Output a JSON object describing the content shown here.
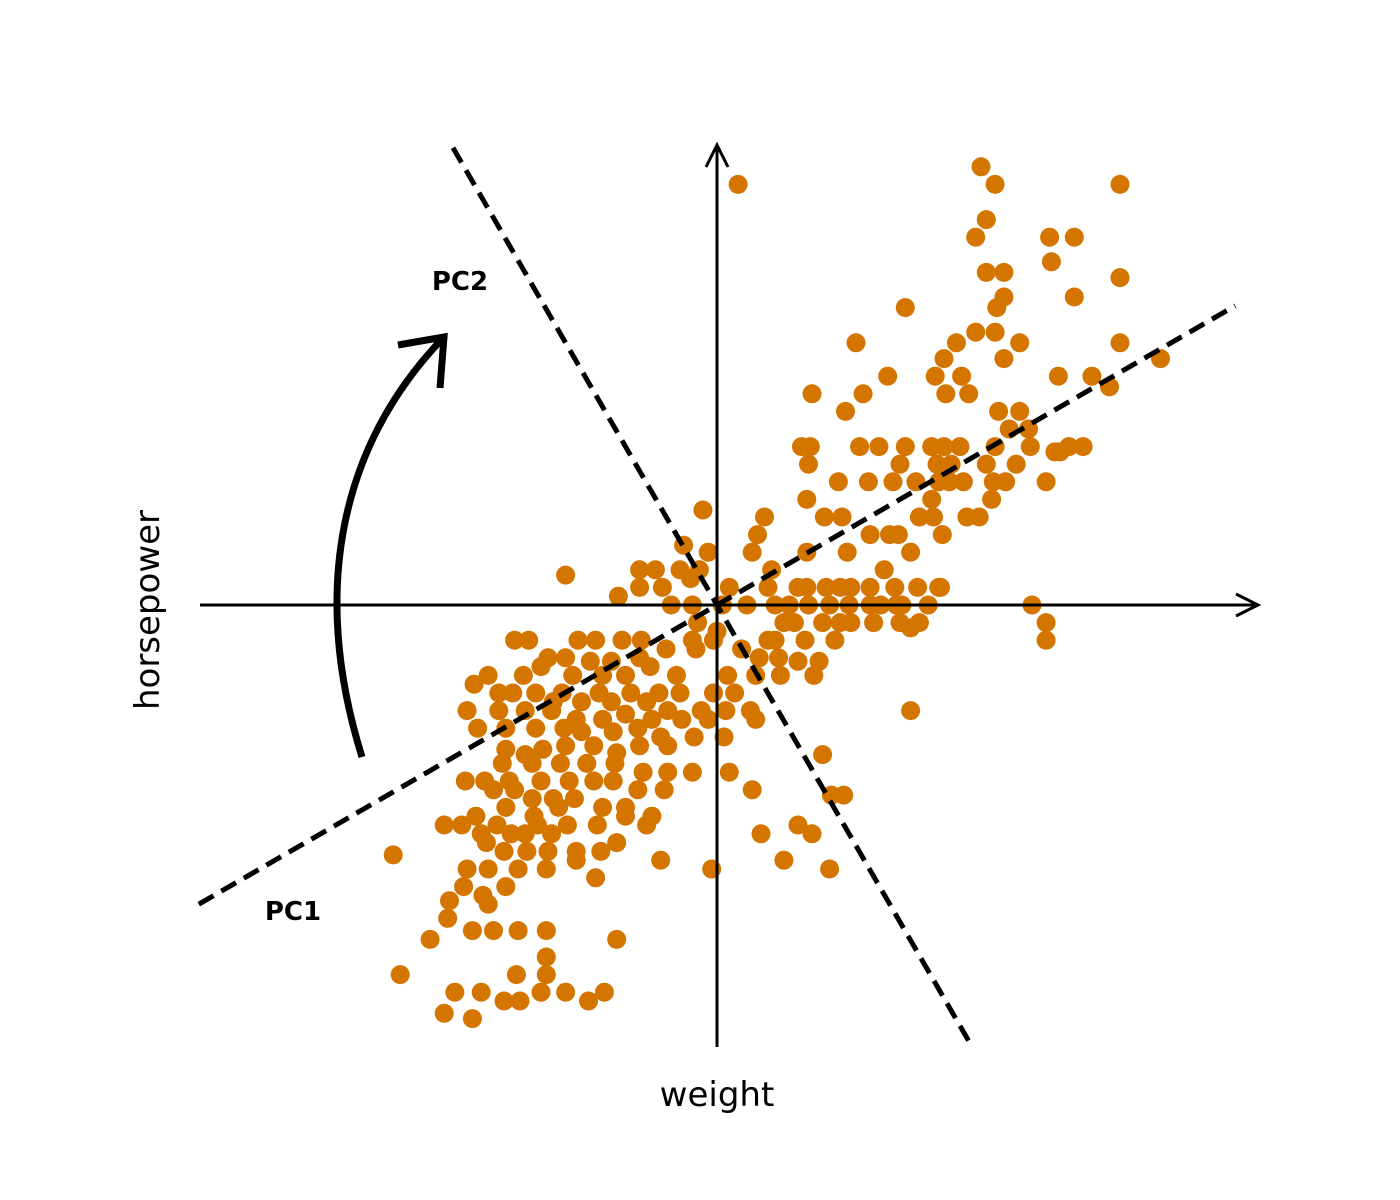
{
  "chart_data": {
    "type": "scatter",
    "xlabel": "weight",
    "ylabel": "horsepower",
    "xlim": [
      -2.5,
      2.5
    ],
    "ylim": [
      -2.5,
      2.5
    ],
    "point_color": "#D47500",
    "line_color": "#000000",
    "grid": false,
    "legend": "none",
    "annotations": [
      {
        "text": "PC1",
        "direction": [
          0.866,
          0.5
        ]
      },
      {
        "text": "PC2",
        "direction": [
          -0.5,
          0.866
        ]
      }
    ],
    "rotation_arrow": "counter-clockwise from PC1 to PC2",
    "points": [
      [
        0.12,
        2.39
      ],
      [
        1.5,
        2.49
      ],
      [
        1.58,
        2.39
      ],
      [
        2.29,
        2.39
      ],
      [
        1.53,
        2.19
      ],
      [
        1.47,
        2.09
      ],
      [
        1.89,
        2.09
      ],
      [
        2.03,
        2.09
      ],
      [
        1.9,
        1.95
      ],
      [
        1.63,
        1.89
      ],
      [
        1.53,
        1.89
      ],
      [
        1.59,
        1.69
      ],
      [
        2.29,
        1.86
      ],
      [
        2.03,
        1.75
      ],
      [
        1.63,
        1.75
      ],
      [
        1.47,
        1.55
      ],
      [
        1.07,
        1.69
      ],
      [
        0.79,
        1.49
      ],
      [
        1.36,
        1.49
      ],
      [
        1.58,
        1.55
      ],
      [
        1.72,
        1.49
      ],
      [
        1.63,
        1.4
      ],
      [
        2.29,
        1.49
      ],
      [
        2.52,
        1.4
      ],
      [
        1.29,
        1.4
      ],
      [
        0.97,
        1.3
      ],
      [
        1.39,
        1.3
      ],
      [
        1.94,
        1.3
      ],
      [
        2.13,
        1.3
      ],
      [
        2.23,
        1.24
      ],
      [
        0.54,
        1.2
      ],
      [
        0.83,
        1.2
      ],
      [
        1.3,
        1.2
      ],
      [
        1.43,
        1.2
      ],
      [
        1.24,
        1.3
      ],
      [
        0.73,
        1.1
      ],
      [
        1.6,
        1.1
      ],
      [
        1.72,
        1.1
      ],
      [
        1.66,
        1.0
      ],
      [
        1.77,
        1.0
      ],
      [
        0.48,
        0.9
      ],
      [
        0.53,
        0.9
      ],
      [
        0.81,
        0.9
      ],
      [
        0.92,
        0.9
      ],
      [
        1.07,
        0.9
      ],
      [
        1.22,
        0.9
      ],
      [
        1.29,
        0.9
      ],
      [
        1.38,
        0.9
      ],
      [
        1.58,
        0.9
      ],
      [
        1.78,
        0.9
      ],
      [
        1.95,
        0.87
      ],
      [
        2.0,
        0.9
      ],
      [
        2.08,
        0.9
      ],
      [
        0.52,
        0.8
      ],
      [
        1.04,
        0.8
      ],
      [
        1.25,
        0.8
      ],
      [
        1.33,
        0.8
      ],
      [
        1.53,
        0.8
      ],
      [
        1.7,
        0.8
      ],
      [
        1.92,
        0.87
      ],
      [
        1.87,
        0.7
      ],
      [
        1.26,
        0.7
      ],
      [
        1.32,
        0.7
      ],
      [
        1.4,
        0.7
      ],
      [
        1.57,
        0.7
      ],
      [
        1.64,
        0.7
      ],
      [
        0.69,
        0.7
      ],
      [
        0.86,
        0.7
      ],
      [
        1.0,
        0.7
      ],
      [
        1.13,
        0.7
      ],
      [
        1.22,
        0.6
      ],
      [
        1.56,
        0.6
      ],
      [
        0.51,
        0.6
      ],
      [
        0.61,
        0.5
      ],
      [
        0.27,
        0.5
      ],
      [
        1.15,
        0.5
      ],
      [
        0.98,
        0.4
      ],
      [
        0.71,
        0.5
      ],
      [
        1.23,
        0.5
      ],
      [
        1.42,
        0.5
      ],
      [
        0.87,
        0.4
      ],
      [
        1.03,
        0.4
      ],
      [
        1.28,
        0.4
      ],
      [
        1.49,
        0.5
      ],
      [
        0.51,
        0.3
      ],
      [
        1.1,
        0.3
      ],
      [
        0.23,
        0.4
      ],
      [
        0.2,
        0.3
      ],
      [
        0.74,
        0.3
      ],
      [
        -0.08,
        0.54
      ],
      [
        -0.19,
        0.34
      ],
      [
        -0.05,
        0.3
      ],
      [
        0.31,
        0.2
      ],
      [
        0.95,
        0.2
      ],
      [
        1.27,
        0.1
      ],
      [
        -0.86,
        0.17
      ],
      [
        -0.44,
        0.2
      ],
      [
        -0.35,
        0.2
      ],
      [
        -0.21,
        0.2
      ],
      [
        -0.1,
        0.2
      ],
      [
        -0.56,
        0.05
      ],
      [
        -0.44,
        0.1
      ],
      [
        -0.31,
        0.1
      ],
      [
        -0.15,
        0.15
      ],
      [
        0.07,
        0.1
      ],
      [
        0.29,
        0.1
      ],
      [
        0.46,
        0.1
      ],
      [
        0.51,
        0.1
      ],
      [
        0.62,
        0.1
      ],
      [
        0.7,
        0.1
      ],
      [
        0.76,
        0.1
      ],
      [
        0.87,
        0.1
      ],
      [
        1.01,
        0.1
      ],
      [
        1.14,
        0.1
      ],
      [
        1.26,
        0.1
      ],
      [
        0.87,
        0.0
      ],
      [
        1.02,
        0.0
      ],
      [
        1.2,
        0.0
      ],
      [
        1.05,
        0.0
      ],
      [
        0.64,
        0.0
      ],
      [
        0.75,
        0.0
      ],
      [
        0.93,
        0.0
      ],
      [
        1.79,
        0.0
      ],
      [
        -0.26,
        0.0
      ],
      [
        -0.14,
        0.0
      ],
      [
        0.03,
        0.0
      ],
      [
        0.17,
        0.0
      ],
      [
        0.33,
        0.0
      ],
      [
        0.41,
        0.0
      ],
      [
        0.52,
        0.0
      ],
      [
        0.7,
        -0.1
      ],
      [
        0.89,
        -0.1
      ],
      [
        1.04,
        -0.1
      ],
      [
        1.15,
        -0.1
      ],
      [
        0.6,
        -0.1
      ],
      [
        0.76,
        -0.1
      ],
      [
        0.38,
        -0.1
      ],
      [
        0.44,
        -0.1
      ],
      [
        -0.11,
        -0.1
      ],
      [
        0.0,
        -0.15
      ],
      [
        1.87,
        -0.1
      ],
      [
        1.1,
        -0.13
      ],
      [
        1.87,
        -0.2
      ],
      [
        0.33,
        -0.2
      ],
      [
        0.5,
        -0.2
      ],
      [
        -0.02,
        -0.2
      ],
      [
        -0.14,
        -0.2
      ],
      [
        0.29,
        -0.2
      ],
      [
        0.67,
        -0.2
      ],
      [
        -1.15,
        -0.2
      ],
      [
        -1.07,
        -0.2
      ],
      [
        -0.79,
        -0.2
      ],
      [
        -0.69,
        -0.2
      ],
      [
        -0.54,
        -0.2
      ],
      [
        -0.43,
        -0.2
      ],
      [
        -0.29,
        -0.25
      ],
      [
        -0.12,
        -0.25
      ],
      [
        0.14,
        -0.25
      ],
      [
        0.24,
        -0.3
      ],
      [
        0.35,
        -0.3
      ],
      [
        0.46,
        -0.32
      ],
      [
        0.58,
        -0.32
      ],
      [
        -0.96,
        -0.3
      ],
      [
        -0.86,
        -0.3
      ],
      [
        -0.72,
        -0.32
      ],
      [
        -0.6,
        -0.32
      ],
      [
        -0.44,
        -0.3
      ],
      [
        -1.0,
        -0.35
      ],
      [
        -1.1,
        -0.4
      ],
      [
        -0.82,
        -0.4
      ],
      [
        -0.65,
        -0.4
      ],
      [
        -0.52,
        -0.4
      ],
      [
        -0.38,
        -0.35
      ],
      [
        -0.23,
        -0.4
      ],
      [
        0.06,
        -0.4
      ],
      [
        0.22,
        -0.4
      ],
      [
        0.36,
        -0.4
      ],
      [
        0.55,
        -0.4
      ],
      [
        -1.38,
        -0.45
      ],
      [
        -1.3,
        -0.4
      ],
      [
        -1.24,
        -0.5
      ],
      [
        -1.03,
        -0.5
      ],
      [
        -0.88,
        -0.5
      ],
      [
        -0.67,
        -0.5
      ],
      [
        -0.49,
        -0.5
      ],
      [
        -0.33,
        -0.5
      ],
      [
        -0.21,
        -0.5
      ],
      [
        -0.02,
        -0.5
      ],
      [
        0.1,
        -0.5
      ],
      [
        -1.16,
        -0.5
      ],
      [
        -0.93,
        -0.55
      ],
      [
        -0.77,
        -0.55
      ],
      [
        -0.6,
        -0.55
      ],
      [
        -0.4,
        -0.55
      ],
      [
        -0.28,
        -0.6
      ],
      [
        -0.09,
        -0.6
      ],
      [
        0.05,
        -0.6
      ],
      [
        0.19,
        -0.6
      ],
      [
        1.1,
        -0.6
      ],
      [
        -1.42,
        -0.6
      ],
      [
        -1.24,
        -0.6
      ],
      [
        -1.09,
        -0.6
      ],
      [
        -0.94,
        -0.6
      ],
      [
        -0.8,
        -0.65
      ],
      [
        -0.65,
        -0.65
      ],
      [
        -0.52,
        -0.62
      ],
      [
        -0.37,
        -0.65
      ],
      [
        -0.2,
        -0.65
      ],
      [
        -0.05,
        -0.65
      ],
      [
        0.22,
        -0.65
      ],
      [
        -1.36,
        -0.7
      ],
      [
        -1.2,
        -0.7
      ],
      [
        -1.03,
        -0.7
      ],
      [
        -0.87,
        -0.7
      ],
      [
        -0.77,
        -0.72
      ],
      [
        -0.59,
        -0.72
      ],
      [
        -0.45,
        -0.7
      ],
      [
        -0.32,
        -0.75
      ],
      [
        -0.13,
        -0.75
      ],
      [
        0.04,
        -0.75
      ],
      [
        -0.99,
        -0.82
      ],
      [
        -1.2,
        -0.82
      ],
      [
        -1.09,
        -0.85
      ],
      [
        -0.86,
        -0.8
      ],
      [
        -0.7,
        -0.8
      ],
      [
        -0.57,
        -0.84
      ],
      [
        -0.44,
        -0.8
      ],
      [
        -0.28,
        -0.8
      ],
      [
        0.6,
        -0.85
      ],
      [
        -1.22,
        -0.9
      ],
      [
        -1.05,
        -0.9
      ],
      [
        -0.89,
        -0.9
      ],
      [
        -0.74,
        -0.9
      ],
      [
        -0.58,
        -0.9
      ],
      [
        -0.42,
        -0.95
      ],
      [
        -0.28,
        -0.95
      ],
      [
        -0.14,
        -0.95
      ],
      [
        0.07,
        -0.95
      ],
      [
        -1.43,
        -1.0
      ],
      [
        -1.32,
        -1.0
      ],
      [
        -1.18,
        -1.0
      ],
      [
        -1.0,
        -1.0
      ],
      [
        -0.84,
        -1.0
      ],
      [
        -0.7,
        -1.0
      ],
      [
        -0.59,
        -1.0
      ],
      [
        -0.45,
        -1.05
      ],
      [
        -0.3,
        -1.05
      ],
      [
        0.2,
        -1.05
      ],
      [
        0.65,
        -1.08
      ],
      [
        0.72,
        -1.08
      ],
      [
        -1.27,
        -1.05
      ],
      [
        -1.15,
        -1.05
      ],
      [
        -1.05,
        -1.1
      ],
      [
        -0.93,
        -1.1
      ],
      [
        -0.81,
        -1.1
      ],
      [
        -0.65,
        -1.15
      ],
      [
        -0.52,
        -1.15
      ],
      [
        -0.37,
        -1.2
      ],
      [
        -0.9,
        -1.15
      ],
      [
        -1.04,
        -1.2
      ],
      [
        -1.2,
        -1.15
      ],
      [
        -1.37,
        -1.2
      ],
      [
        -1.55,
        -1.25
      ],
      [
        -1.45,
        -1.25
      ],
      [
        -1.25,
        -1.25
      ],
      [
        -1.02,
        -1.25
      ],
      [
        -0.85,
        -1.25
      ],
      [
        -0.68,
        -1.25
      ],
      [
        -0.52,
        -1.2
      ],
      [
        -0.4,
        -1.25
      ],
      [
        -1.09,
        -1.3
      ],
      [
        -0.94,
        -1.3
      ],
      [
        0.46,
        -1.25
      ],
      [
        0.54,
        -1.3
      ],
      [
        0.25,
        -1.3
      ],
      [
        -1.34,
        -1.3
      ],
      [
        -1.17,
        -1.3
      ],
      [
        -1.31,
        -1.35
      ],
      [
        -1.21,
        -1.4
      ],
      [
        -1.08,
        -1.4
      ],
      [
        -0.96,
        -1.4
      ],
      [
        -0.8,
        -1.4
      ],
      [
        -0.66,
        -1.4
      ],
      [
        -0.57,
        -1.35
      ],
      [
        -0.32,
        -1.45
      ],
      [
        -1.42,
        -1.5
      ],
      [
        -1.3,
        -1.5
      ],
      [
        -1.13,
        -1.5
      ],
      [
        -0.97,
        -1.5
      ],
      [
        -0.8,
        -1.45
      ],
      [
        -0.69,
        -1.55
      ],
      [
        -1.84,
        -1.42
      ],
      [
        -1.2,
        -1.6
      ],
      [
        -1.44,
        -1.6
      ],
      [
        -1.33,
        -1.65
      ],
      [
        -1.3,
        -1.7
      ],
      [
        -1.52,
        -1.68
      ],
      [
        -0.03,
        -1.5
      ],
      [
        0.64,
        -1.5
      ],
      [
        0.38,
        -1.45
      ],
      [
        -1.53,
        -1.78
      ],
      [
        -1.39,
        -1.85
      ],
      [
        -1.27,
        -1.85
      ],
      [
        -1.13,
        -1.85
      ],
      [
        -0.97,
        -1.85
      ],
      [
        -1.63,
        -1.9
      ],
      [
        -0.57,
        -1.9
      ],
      [
        -1.8,
        -2.1
      ],
      [
        -1.49,
        -2.2
      ],
      [
        -1.34,
        -2.2
      ],
      [
        -1.21,
        -2.25
      ],
      [
        -1.12,
        -2.25
      ],
      [
        -1.14,
        -2.1
      ],
      [
        -0.97,
        -2.1
      ],
      [
        -0.86,
        -2.2
      ],
      [
        -0.73,
        -2.25
      ],
      [
        -1.55,
        -2.32
      ],
      [
        -1.39,
        -2.35
      ],
      [
        -0.97,
        -2.0
      ],
      [
        -1.0,
        -2.2
      ],
      [
        -0.64,
        -2.2
      ]
    ]
  }
}
